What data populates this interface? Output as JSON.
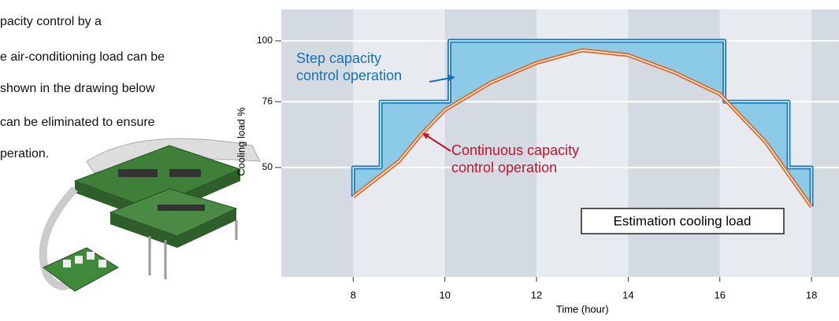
{
  "intro": [
    "pacity control by a",
    "e air-conditioning load can be",
    "shown in the drawing below",
    "can be eliminated to ensure",
    "peration."
  ],
  "chart_data": {
    "type": "line",
    "xlabel": "Time (hour)",
    "ylabel": "Cooling load %",
    "xlim": [
      6.43,
      18.6
    ],
    "ylim": [
      6.8,
      112.4
    ],
    "xticks": [
      8,
      10,
      12,
      14,
      16,
      18
    ],
    "yticks": [
      50,
      76,
      100
    ],
    "grid": true,
    "series": [
      {
        "name": "Step capacity control operation",
        "color": "#1a7bbf",
        "fill": "#8ccbe8",
        "x": [
          8,
          8,
          8.6,
          8.6,
          10.1,
          10.1,
          16.1,
          16.1,
          17.5,
          17.5,
          18,
          18
        ],
        "values": [
          38.5,
          50,
          50,
          76,
          76,
          100,
          100,
          76,
          76,
          50,
          50,
          34.5
        ]
      },
      {
        "name": "Continuous capacity control operation",
        "color": "#e06a2a",
        "x": [
          8,
          9,
          9.5,
          10,
          11,
          12,
          13,
          14,
          15,
          16,
          17,
          18
        ],
        "values": [
          38.5,
          52.5,
          63.4,
          72.7,
          83.5,
          91.3,
          96.3,
          94.4,
          87.6,
          79,
          60,
          34.5
        ]
      }
    ],
    "annotation": "Estimation cooling load"
  }
}
